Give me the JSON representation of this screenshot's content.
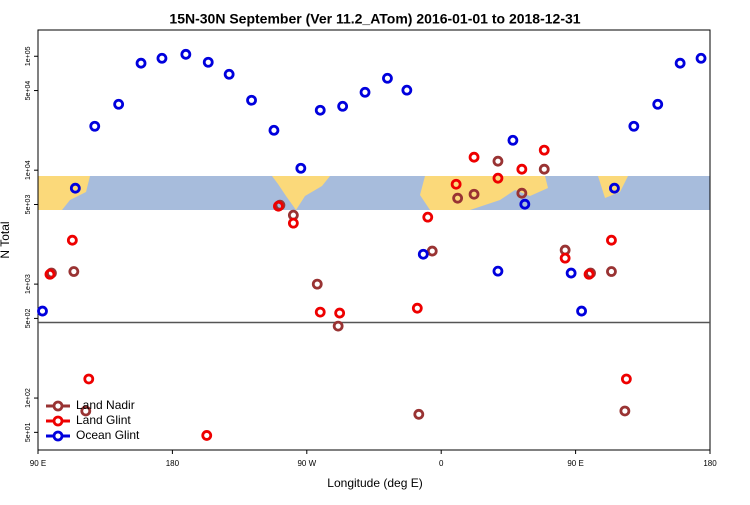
{
  "chart_data": {
    "type": "scatter",
    "scale": "log",
    "title": "15N-30N September (Ver 11.2_ATom)   2016-01-01 to 2018-12-31",
    "x_label": "Longitude (deg E)",
    "y_label": "N Total",
    "xlim": [
      90,
      540
    ],
    "xticks": [
      {
        "value": 90,
        "label": "90 E"
      },
      180,
      {
        "value": 270,
        "label": "90 W"
      },
      {
        "value": 360,
        "label": "0"
      },
      {
        "value": 450,
        "label": "90 E"
      },
      {
        "value": 540,
        "label": "180"
      }
    ],
    "ylim": [
      35,
      170000
    ],
    "yticks": [
      {
        "value": 50,
        "label": "5e+01"
      },
      {
        "value": 100,
        "label": "1e+02"
      },
      {
        "value": 500,
        "label": "5e+02"
      },
      {
        "value": 1000,
        "label": "1e+03"
      },
      {
        "value": 5000,
        "label": "5e+03"
      },
      {
        "value": 10000,
        "label": "1e+04"
      },
      {
        "value": 50000,
        "label": "5e+04"
      },
      {
        "value": 100000,
        "label": "1e+05"
      }
    ],
    "reference_line": 460,
    "legend": "lower left",
    "series": [
      {
        "name": "Land Nadir",
        "color": "#993333",
        "x": [
          99,
          114,
          122,
          252,
          261,
          277,
          291,
          345,
          354,
          371,
          382,
          398,
          414,
          429,
          443,
          460,
          474,
          483
        ],
        "values": [
          1250,
          1290,
          77,
          4930,
          4030,
          1000,
          428,
          72,
          1950,
          5680,
          6150,
          12000,
          6280,
          10200,
          1990,
          1250,
          1290,
          77
        ]
      },
      {
        "name": "Land Glint",
        "color": "#ee0000",
        "x": [
          98,
          113,
          124,
          203,
          251,
          261,
          279,
          292,
          344,
          351,
          370,
          382,
          398,
          414,
          429,
          443,
          459,
          474,
          484
        ],
        "values": [
          1220,
          2430,
          147,
          47,
          4830,
          3430,
          568,
          557,
          615,
          3870,
          7530,
          13000,
          8510,
          10200,
          15000,
          1690,
          1220,
          2430,
          147
        ]
      },
      {
        "name": "Ocean Glint",
        "color": "#0000dd",
        "x": [
          93,
          115,
          128,
          144,
          159,
          173,
          189,
          204,
          218,
          233,
          248,
          266,
          279,
          294,
          309,
          324,
          337,
          348,
          398,
          408,
          416,
          447,
          454,
          476,
          489,
          505,
          520,
          534
        ],
        "values": [
          580,
          6950,
          24300,
          37900,
          86900,
          96000,
          104000,
          88600,
          69500,
          41100,
          22400,
          10400,
          33600,
          36400,
          48300,
          64100,
          50400,
          1830,
          1300,
          18300,
          5030,
          1250,
          580,
          6950,
          24300,
          37900,
          86900,
          96000
        ]
      }
    ]
  }
}
